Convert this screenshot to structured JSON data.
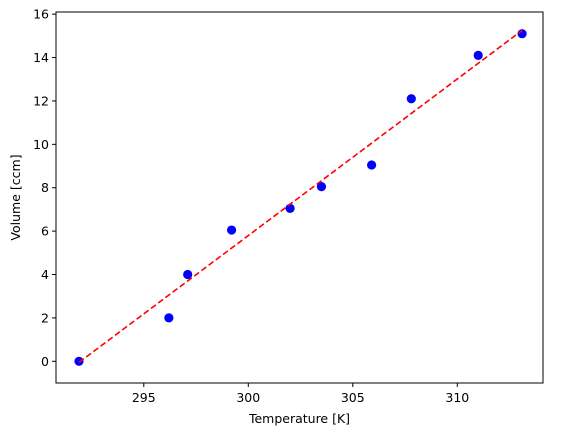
{
  "chart_data": {
    "type": "scatter",
    "title": "",
    "xlabel": "Temperature [K]",
    "ylabel": "Volume [ccm]",
    "xlim": [
      290.8,
      314.1
    ],
    "ylim": [
      -1.0,
      16.1
    ],
    "x_ticks": [
      295,
      300,
      305,
      310
    ],
    "y_ticks": [
      0,
      2,
      4,
      6,
      8,
      10,
      12,
      14,
      16
    ],
    "grid": false,
    "legend": "none",
    "series": [
      {
        "kind": "points",
        "color": "#0000ff",
        "marker": "circle",
        "x": [
          291.9,
          296.2,
          297.1,
          299.2,
          302.0,
          303.5,
          305.9,
          307.8,
          311.0,
          313.1
        ],
        "y": [
          0.0,
          2.0,
          4.0,
          6.05,
          7.05,
          8.05,
          9.05,
          12.1,
          14.1,
          15.1
        ]
      },
      {
        "kind": "fit-line",
        "color": "#ff0000",
        "style": "dashed",
        "x": [
          291.9,
          313.1
        ],
        "y": [
          -0.05,
          15.25
        ]
      }
    ]
  }
}
